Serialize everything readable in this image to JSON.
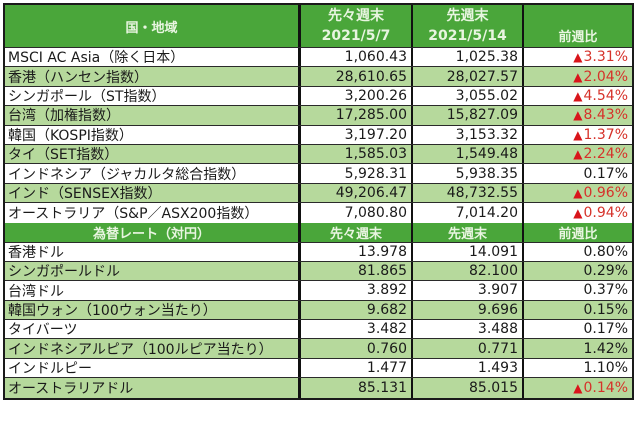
{
  "colors": {
    "header_bg": "#4aa63a",
    "header_text": "#e8f5e0",
    "stripe_green": "#b6d99c",
    "negative_red": "#d6322a"
  },
  "indices": {
    "header": {
      "region": "国・地域",
      "prev2_label": "先々週末",
      "prev2_date": "2021/5/7",
      "prev_label": "先週末",
      "prev_date": "2021/5/14",
      "change": "前週比"
    },
    "rows": [
      {
        "name": "MSCI AC Asia（除く日本）",
        "prev2": "1,060.43",
        "prev": "1,025.38",
        "change": "3.31%",
        "negative": true
      },
      {
        "name": "香港（ハンセン指数）",
        "prev2": "28,610.65",
        "prev": "28,027.57",
        "change": "2.04%",
        "negative": true
      },
      {
        "name": "シンガポール（ST指数）",
        "prev2": "3,200.26",
        "prev": "3,055.02",
        "change": "4.54%",
        "negative": true
      },
      {
        "name": "台湾（加権指数）",
        "prev2": "17,285.00",
        "prev": "15,827.09",
        "change": "8.43%",
        "negative": true
      },
      {
        "name": "韓国（KOSPI指数）",
        "prev2": "3,197.20",
        "prev": "3,153.32",
        "change": "1.37%",
        "negative": true
      },
      {
        "name": "タイ（SET指数）",
        "prev2": "1,585.03",
        "prev": "1,549.48",
        "change": "2.24%",
        "negative": true
      },
      {
        "name": "インドネシア（ジャカルタ総合指数）",
        "prev2": "5,928.31",
        "prev": "5,938.35",
        "change": "0.17%",
        "negative": false
      },
      {
        "name": "インド（SENSEX指数）",
        "prev2": "49,206.47",
        "prev": "48,732.55",
        "change": "0.96%",
        "negative": true
      },
      {
        "name": "オーストラリア（S&P／ASX200指数）",
        "prev2": "7,080.80",
        "prev": "7,014.20",
        "change": "0.94%",
        "negative": true
      }
    ]
  },
  "fx": {
    "header": {
      "region": "為替レート（対円）",
      "prev2_label": "先々週末",
      "prev_label": "先週末",
      "change": "前週比"
    },
    "rows": [
      {
        "name": "香港ドル",
        "prev2": "13.978",
        "prev": "14.091",
        "change": "0.80%",
        "negative": false
      },
      {
        "name": "シンガポールドル",
        "prev2": "81.865",
        "prev": "82.100",
        "change": "0.29%",
        "negative": false
      },
      {
        "name": "台湾ドル",
        "prev2": "3.892",
        "prev": "3.907",
        "change": "0.37%",
        "negative": false
      },
      {
        "name": "韓国ウォン（100ウォン当たり）",
        "prev2": "9.682",
        "prev": "9.696",
        "change": "0.15%",
        "negative": false
      },
      {
        "name": "タイバーツ",
        "prev2": "3.482",
        "prev": "3.488",
        "change": "0.17%",
        "negative": false
      },
      {
        "name": "インドネシアルピア（100ルピア当たり）",
        "prev2": "0.760",
        "prev": "0.771",
        "change": "1.42%",
        "negative": false
      },
      {
        "name": "インドルピー",
        "prev2": "1.477",
        "prev": "1.493",
        "change": "1.10%",
        "negative": false
      },
      {
        "name": "オーストラリアドル",
        "prev2": "85.131",
        "prev": "85.015",
        "change": "0.14%",
        "negative": true
      }
    ]
  },
  "negative_marker": "▲"
}
